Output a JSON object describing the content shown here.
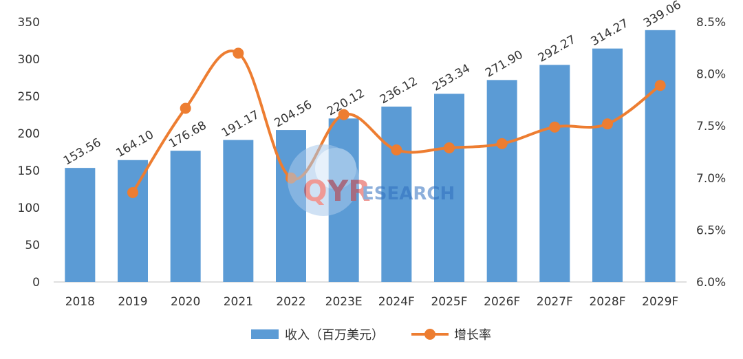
{
  "chart_data": {
    "type": "bar",
    "categories": [
      "2018",
      "2019",
      "2020",
      "2021",
      "2022",
      "2023E",
      "2024F",
      "2025F",
      "2026F",
      "2027F",
      "2028F",
      "2029F"
    ],
    "series": [
      {
        "name": "收入（百万美元）",
        "type": "bar",
        "axis": "left",
        "values": [
          153.56,
          164.1,
          176.68,
          191.17,
          204.56,
          220.12,
          236.12,
          253.34,
          271.9,
          292.27,
          314.27,
          339.06
        ],
        "labels": [
          "153.56",
          "164.10",
          "176.68",
          "191.17",
          "204.56",
          "220.12",
          "236.12",
          "253.34",
          "271.90",
          "292.27",
          "314.27",
          "339.06"
        ],
        "color": "#5b9bd5"
      },
      {
        "name": "增长率",
        "type": "line",
        "axis": "right",
        "values": [
          null,
          6.86,
          7.67,
          8.2,
          7.0,
          7.61,
          7.27,
          7.29,
          7.33,
          7.49,
          7.52,
          7.89
        ],
        "color": "#ed7d31"
      }
    ],
    "y_left": {
      "min": 0,
      "max": 350,
      "ticks": [
        0,
        50,
        100,
        150,
        200,
        250,
        300,
        350
      ]
    },
    "y_right": {
      "min": 6.0,
      "max": 8.5,
      "ticks": [
        6.0,
        6.5,
        7.0,
        7.5,
        8.0,
        8.5
      ],
      "tick_labels": [
        "6.0%",
        "6.5%",
        "7.0%",
        "7.5%",
        "8.0%",
        "8.5%"
      ]
    },
    "legend": {
      "position": "bottom"
    },
    "grid": false
  },
  "watermark": {
    "text_qyr": "QYR",
    "text_rest": "ESEARCH"
  }
}
